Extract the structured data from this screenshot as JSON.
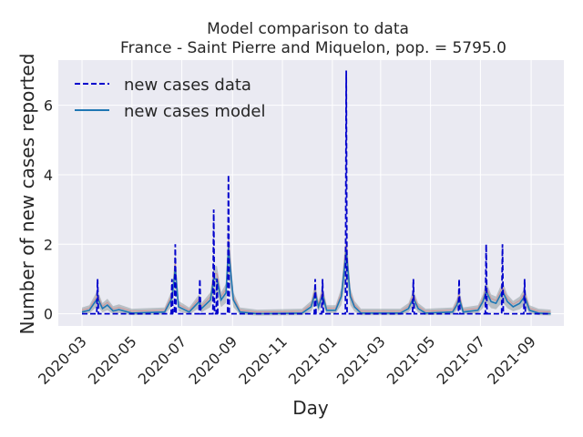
{
  "chart_data": {
    "type": "line",
    "title": "Model comparison to data",
    "subtitle": "France - Saint Pierre and Miquelon, pop. = 5795.0",
    "xlabel": "Day",
    "ylabel": "Number of new cases reported",
    "xlim": [
      "2020-02-01",
      "2021-10-11"
    ],
    "ylim": [
      -0.35,
      7.3
    ],
    "grid": true,
    "legend_position": "top-left",
    "x_ticks": [
      "2020-03",
      "2020-05",
      "2020-07",
      "2020-09",
      "2020-11",
      "2021-01",
      "2021-03",
      "2021-05",
      "2021-07",
      "2021-09"
    ],
    "y_ticks": [
      0,
      2,
      4,
      6
    ],
    "series": [
      {
        "name": "new cases data",
        "style": "dashed",
        "color": "#0000cc",
        "points": [
          [
            "2020-03-01",
            0
          ],
          [
            "2020-03-19",
            0
          ],
          [
            "2020-03-20",
            1
          ],
          [
            "2020-03-21",
            0
          ],
          [
            "2020-06-18",
            0
          ],
          [
            "2020-06-19",
            1
          ],
          [
            "2020-06-20",
            0
          ],
          [
            "2020-06-22",
            0
          ],
          [
            "2020-06-23",
            2
          ],
          [
            "2020-06-24",
            0
          ],
          [
            "2020-07-22",
            0
          ],
          [
            "2020-07-23",
            1
          ],
          [
            "2020-07-24",
            0
          ],
          [
            "2020-08-08",
            0
          ],
          [
            "2020-08-09",
            3
          ],
          [
            "2020-08-10",
            0
          ],
          [
            "2020-08-12",
            0
          ],
          [
            "2020-08-13",
            1
          ],
          [
            "2020-08-14",
            0
          ],
          [
            "2020-08-26",
            0
          ],
          [
            "2020-08-27",
            4
          ],
          [
            "2020-08-28",
            0
          ],
          [
            "2020-12-10",
            0
          ],
          [
            "2020-12-11",
            1
          ],
          [
            "2020-12-12",
            0
          ],
          [
            "2020-12-19",
            0
          ],
          [
            "2020-12-20",
            1
          ],
          [
            "2020-12-21",
            0
          ],
          [
            "2021-01-17",
            0
          ],
          [
            "2021-01-18",
            7
          ],
          [
            "2021-01-19",
            0
          ],
          [
            "2021-04-09",
            0
          ],
          [
            "2021-04-10",
            1
          ],
          [
            "2021-04-11",
            0
          ],
          [
            "2021-06-04",
            0
          ],
          [
            "2021-06-05",
            1
          ],
          [
            "2021-06-06",
            0
          ],
          [
            "2021-07-07",
            0
          ],
          [
            "2021-07-08",
            2
          ],
          [
            "2021-07-09",
            0
          ],
          [
            "2021-07-27",
            0
          ],
          [
            "2021-07-28",
            2
          ],
          [
            "2021-07-29",
            0
          ],
          [
            "2021-08-23",
            0
          ],
          [
            "2021-08-24",
            1
          ],
          [
            "2021-08-25",
            0
          ],
          [
            "2021-09-25",
            0
          ]
        ]
      },
      {
        "name": "new cases model",
        "style": "solid",
        "color": "#1f77b4",
        "points": [
          [
            "2020-03-01",
            0.05
          ],
          [
            "2020-03-10",
            0.1
          ],
          [
            "2020-03-20",
            0.45
          ],
          [
            "2020-03-26",
            0.15
          ],
          [
            "2020-04-01",
            0.25
          ],
          [
            "2020-04-08",
            0.08
          ],
          [
            "2020-04-15",
            0.12
          ],
          [
            "2020-05-01",
            0.02
          ],
          [
            "2020-06-10",
            0.05
          ],
          [
            "2020-06-19",
            0.45
          ],
          [
            "2020-06-23",
            1.3
          ],
          [
            "2020-06-27",
            0.2
          ],
          [
            "2020-07-10",
            0.05
          ],
          [
            "2020-07-22",
            0.35
          ],
          [
            "2020-07-25",
            0.15
          ],
          [
            "2020-08-05",
            0.4
          ],
          [
            "2020-08-09",
            1.0
          ],
          [
            "2020-08-13",
            1.0
          ],
          [
            "2020-08-18",
            0.4
          ],
          [
            "2020-08-24",
            0.6
          ],
          [
            "2020-08-27",
            1.9
          ],
          [
            "2020-09-02",
            0.4
          ],
          [
            "2020-09-10",
            0.05
          ],
          [
            "2020-10-01",
            0.0
          ],
          [
            "2020-11-25",
            0.02
          ],
          [
            "2020-12-06",
            0.2
          ],
          [
            "2020-12-11",
            0.6
          ],
          [
            "2020-12-15",
            0.2
          ],
          [
            "2020-12-20",
            0.55
          ],
          [
            "2020-12-25",
            0.1
          ],
          [
            "2021-01-05",
            0.1
          ],
          [
            "2021-01-12",
            0.5
          ],
          [
            "2021-01-18",
            1.8
          ],
          [
            "2021-01-23",
            0.5
          ],
          [
            "2021-01-28",
            0.2
          ],
          [
            "2021-02-05",
            0.02
          ],
          [
            "2021-03-25",
            0.02
          ],
          [
            "2021-04-04",
            0.15
          ],
          [
            "2021-04-10",
            0.45
          ],
          [
            "2021-04-16",
            0.15
          ],
          [
            "2021-04-25",
            0.02
          ],
          [
            "2021-05-28",
            0.05
          ],
          [
            "2021-06-02",
            0.25
          ],
          [
            "2021-06-05",
            0.45
          ],
          [
            "2021-06-10",
            0.05
          ],
          [
            "2021-06-28",
            0.1
          ],
          [
            "2021-07-04",
            0.35
          ],
          [
            "2021-07-08",
            0.65
          ],
          [
            "2021-07-14",
            0.35
          ],
          [
            "2021-07-20",
            0.3
          ],
          [
            "2021-07-28",
            0.65
          ],
          [
            "2021-08-03",
            0.35
          ],
          [
            "2021-08-10",
            0.2
          ],
          [
            "2021-08-18",
            0.3
          ],
          [
            "2021-08-24",
            0.5
          ],
          [
            "2021-08-30",
            0.1
          ],
          [
            "2021-09-10",
            0.02
          ],
          [
            "2021-09-25",
            0.0
          ]
        ]
      }
    ]
  },
  "colors": {
    "plot_background": "#eaeaf2",
    "grid": "#ffffff",
    "data_line": "#0000cc",
    "model_line": "#1f77b4",
    "ensemble_band": "#7f8c8d",
    "ensemble_highlight": "#e07b7b"
  }
}
